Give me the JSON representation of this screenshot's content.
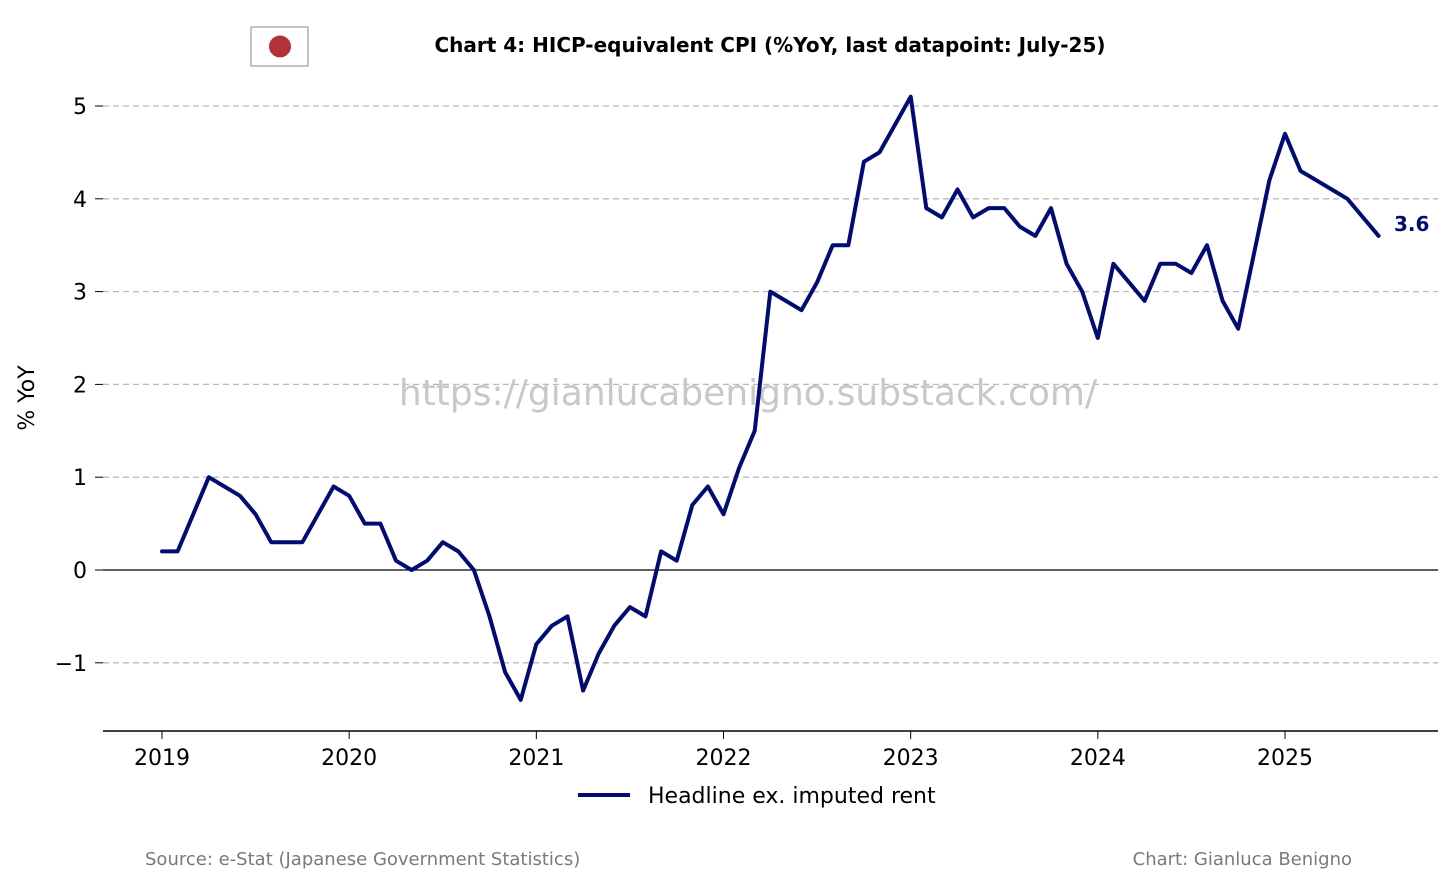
{
  "chart_data": {
    "type": "line",
    "title": "Chart 4: HICP-equivalent CPI (%YoY, last datapoint: July-25)",
    "ylabel": "% YoY",
    "xlabel": "",
    "ylim": [
      -1.75,
      5.35
    ],
    "y_ticks": [
      -1,
      0,
      1,
      2,
      3,
      4,
      5
    ],
    "y_tick_labels": [
      "−1",
      "0",
      "1",
      "2",
      "3",
      "4",
      "5"
    ],
    "x_ticks": [
      "2019",
      "2020",
      "2021",
      "2022",
      "2023",
      "2024",
      "2025"
    ],
    "x_start": "2019-01",
    "grid": "horizontal dashed",
    "legend_placement": "bottom-center",
    "series": [
      {
        "name": "Headline ex. imputed rent",
        "color": "#000c73",
        "x": [
          "2019-01",
          "2019-02",
          "2019-03",
          "2019-04",
          "2019-05",
          "2019-06",
          "2019-07",
          "2019-08",
          "2019-09",
          "2019-10",
          "2019-11",
          "2019-12",
          "2020-01",
          "2020-02",
          "2020-03",
          "2020-04",
          "2020-05",
          "2020-06",
          "2020-07",
          "2020-08",
          "2020-09",
          "2020-10",
          "2020-11",
          "2020-12",
          "2021-01",
          "2021-02",
          "2021-03",
          "2021-04",
          "2021-05",
          "2021-06",
          "2021-07",
          "2021-08",
          "2021-09",
          "2021-10",
          "2021-11",
          "2021-12",
          "2022-01",
          "2022-02",
          "2022-03",
          "2022-04",
          "2022-05",
          "2022-06",
          "2022-07",
          "2022-08",
          "2022-09",
          "2022-10",
          "2022-11",
          "2022-12",
          "2023-01",
          "2023-02",
          "2023-03",
          "2023-04",
          "2023-05",
          "2023-06",
          "2023-07",
          "2023-08",
          "2023-09",
          "2023-10",
          "2023-11",
          "2023-12",
          "2024-01",
          "2024-02",
          "2024-03",
          "2024-04",
          "2024-05",
          "2024-06",
          "2024-07",
          "2024-08",
          "2024-09",
          "2024-10",
          "2024-11",
          "2024-12",
          "2025-01",
          "2025-02",
          "2025-03",
          "2025-04",
          "2025-05",
          "2025-06",
          "2025-07"
        ],
        "values": [
          0.2,
          0.2,
          0.6,
          1.0,
          0.9,
          0.8,
          0.6,
          0.3,
          0.3,
          0.3,
          0.6,
          0.9,
          0.8,
          0.5,
          0.5,
          0.1,
          0.0,
          0.1,
          0.3,
          0.2,
          0.0,
          -0.5,
          -1.1,
          -1.4,
          -0.8,
          -0.6,
          -0.5,
          -1.3,
          -0.9,
          -0.6,
          -0.4,
          -0.5,
          0.2,
          0.1,
          0.7,
          0.9,
          0.6,
          1.1,
          1.5,
          3.0,
          2.9,
          2.8,
          3.1,
          3.5,
          3.5,
          4.4,
          4.5,
          4.8,
          5.1,
          3.9,
          3.8,
          4.1,
          3.8,
          3.9,
          3.9,
          3.7,
          3.6,
          3.9,
          3.3,
          3.0,
          2.5,
          3.3,
          3.1,
          2.9,
          3.3,
          3.3,
          3.2,
          3.5,
          2.9,
          2.6,
          3.4,
          4.2,
          4.7,
          4.3,
          4.2,
          4.1,
          4.0,
          3.8,
          3.6
        ]
      }
    ],
    "last_value_label": "3.6"
  },
  "flag": {
    "name": "japan-flag",
    "disc_color": "#b5313a",
    "bg_color": "#ffffff",
    "border_color": "#888888"
  },
  "watermark": "https://gianlucabenigno.substack.com/",
  "footer": {
    "source": "Source: e-Stat (Japanese Government Statistics)",
    "credit": "Chart: Gianluca Benigno"
  }
}
